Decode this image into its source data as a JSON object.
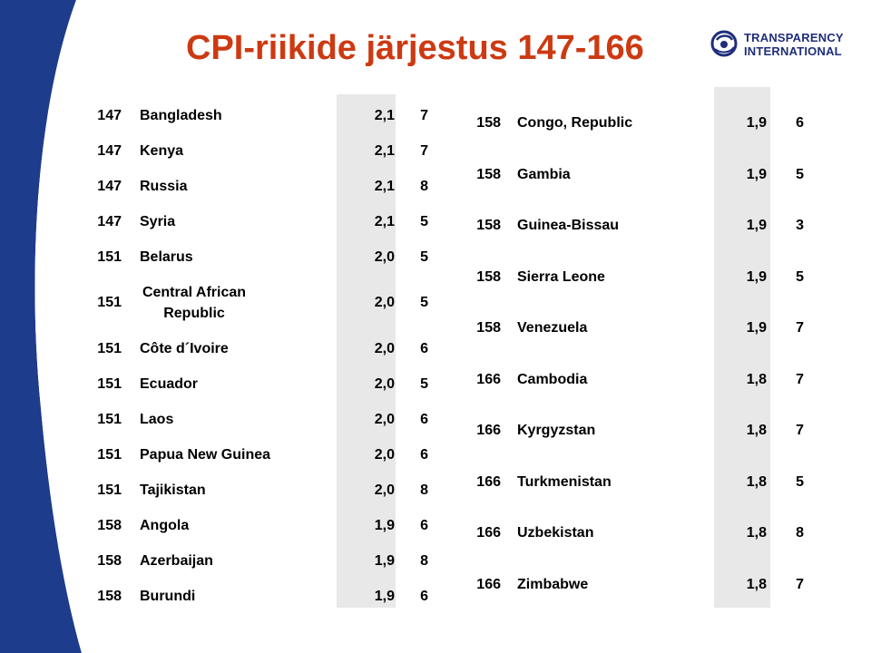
{
  "title": "CPI-riikide järjestus 147-166",
  "logo": {
    "line1": "TRANSPARENCY",
    "line2": "INTERNATIONAL",
    "icon": "transparency-international-globe-icon"
  },
  "colors": {
    "title": "#cc3a12",
    "swoosh": "#1e3c8c",
    "logo": "#1f2e7a",
    "shade": "#e8e8e8"
  },
  "left_table": [
    {
      "rank": "147",
      "country": "Bangladesh",
      "score": "2,1",
      "count": "7"
    },
    {
      "rank": "147",
      "country": "Kenya",
      "score": "2,1",
      "count": "7"
    },
    {
      "rank": "147",
      "country": "Russia",
      "score": "2,1",
      "count": "8"
    },
    {
      "rank": "147",
      "country": "Syria",
      "score": "2,1",
      "count": "5"
    },
    {
      "rank": "151",
      "country": "Belarus",
      "score": "2,0",
      "count": "5"
    },
    {
      "rank": "151",
      "country": "Central African Republic",
      "score": "2,0",
      "count": "5"
    },
    {
      "rank": "151",
      "country": "Côte d´Ivoire",
      "score": "2,0",
      "count": "6"
    },
    {
      "rank": "151",
      "country": "Ecuador",
      "score": "2,0",
      "count": "5"
    },
    {
      "rank": "151",
      "country": "Laos",
      "score": "2,0",
      "count": "6"
    },
    {
      "rank": "151",
      "country": "Papua New Guinea",
      "score": "2,0",
      "count": "6"
    },
    {
      "rank": "151",
      "country": "Tajikistan",
      "score": "2,0",
      "count": "8"
    },
    {
      "rank": "158",
      "country": "Angola",
      "score": "1,9",
      "count": "6"
    },
    {
      "rank": "158",
      "country": "Azerbaijan",
      "score": "1,9",
      "count": "8"
    },
    {
      "rank": "158",
      "country": "Burundi",
      "score": "1,9",
      "count": "6"
    }
  ],
  "right_table": [
    {
      "rank": "158",
      "country": "Congo, Republic",
      "score": "1,9",
      "count": "6"
    },
    {
      "rank": "158",
      "country": "Gambia",
      "score": "1,9",
      "count": "5"
    },
    {
      "rank": "158",
      "country": "Guinea-Bissau",
      "score": "1,9",
      "count": "3"
    },
    {
      "rank": "158",
      "country": "Sierra Leone",
      "score": "1,9",
      "count": "5"
    },
    {
      "rank": "158",
      "country": "Venezuela",
      "score": "1,9",
      "count": "7"
    },
    {
      "rank": "166",
      "country": "Cambodia",
      "score": "1,8",
      "count": "7"
    },
    {
      "rank": "166",
      "country": "Kyrgyzstan",
      "score": "1,8",
      "count": "7"
    },
    {
      "rank": "166",
      "country": "Turkmenistan",
      "score": "1,8",
      "count": "5"
    },
    {
      "rank": "166",
      "country": "Uzbekistan",
      "score": "1,8",
      "count": "8"
    },
    {
      "rank": "166",
      "country": "Zimbabwe",
      "score": "1,8",
      "count": "7"
    }
  ]
}
